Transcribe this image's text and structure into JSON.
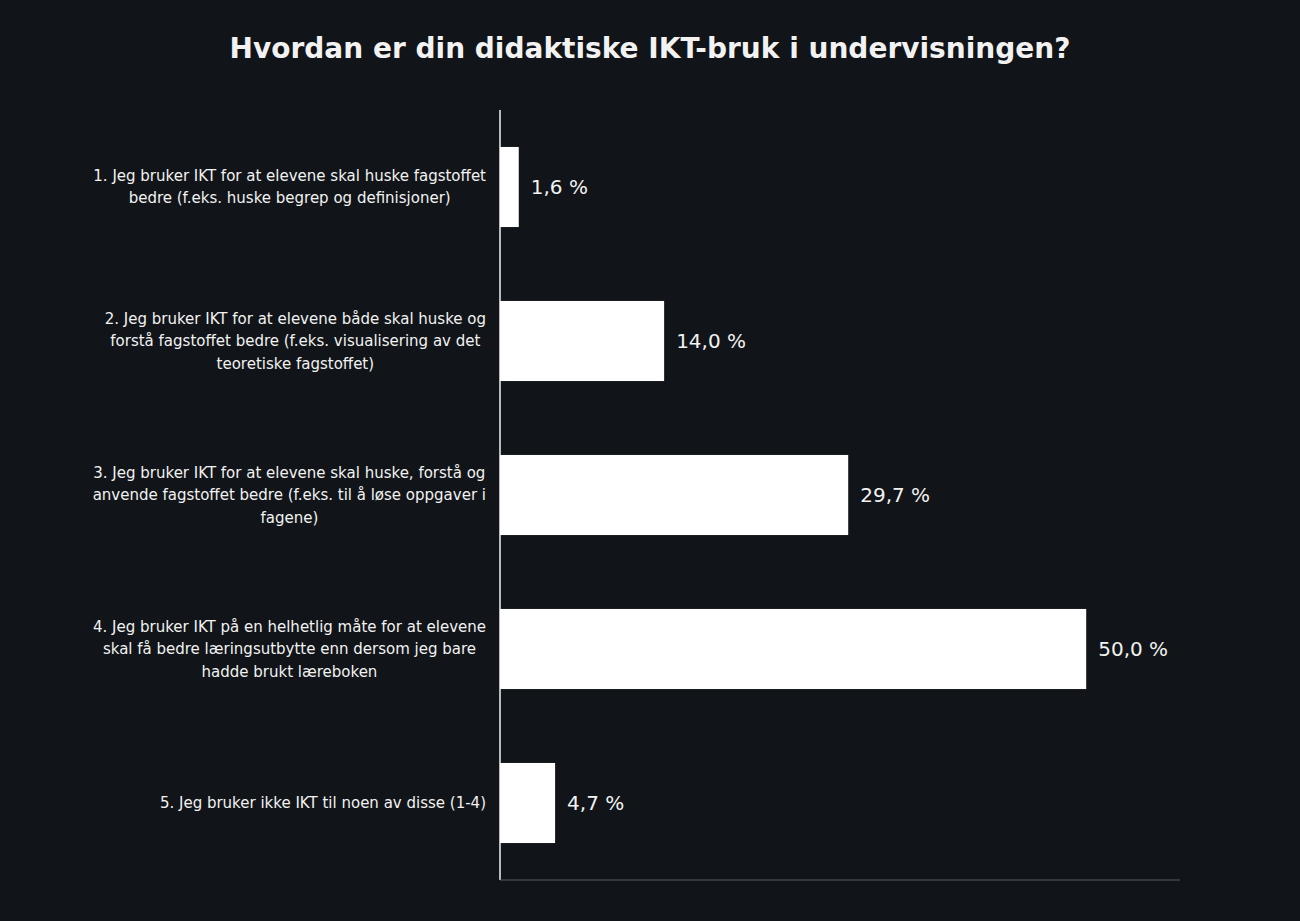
{
  "chart_data": {
    "type": "bar",
    "orientation": "horizontal",
    "title": "Hvordan er din didaktiske IKT-bruk i undervisningen?",
    "categories": [
      "1. Jeg bruker IKT for at elevene skal huske fagstoffet\nbedre (f.eks. huske begrep og definisjoner)",
      "2. Jeg bruker IKT for at elevene både skal huske og\nforstå fagstoffet bedre (f.eks. visualisering av det\nteoretiske fagstoffet)",
      "3. Jeg bruker IKT for at elevene skal huske, forstå og\nanvende fagstoffet bedre (f.eks. til å løse oppgaver i\nfagene)",
      "4. Jeg bruker IKT på en helhetlig måte for at elevene\nskal få bedre læringsutbytte enn dersom jeg bare\nhadde brukt læreboken",
      "5. Jeg bruker ikke IKT til noen av disse (1-4)"
    ],
    "values": [
      1.6,
      14.0,
      29.7,
      50.0,
      4.7
    ],
    "value_labels": [
      "1,6 %",
      "14,0 %",
      "29,7 %",
      "50,0 %",
      "4,7 %"
    ],
    "color": "#ffffff",
    "xlim": [
      0,
      58
    ],
    "tick_labels": false,
    "data_labels": true,
    "grid": false
  }
}
